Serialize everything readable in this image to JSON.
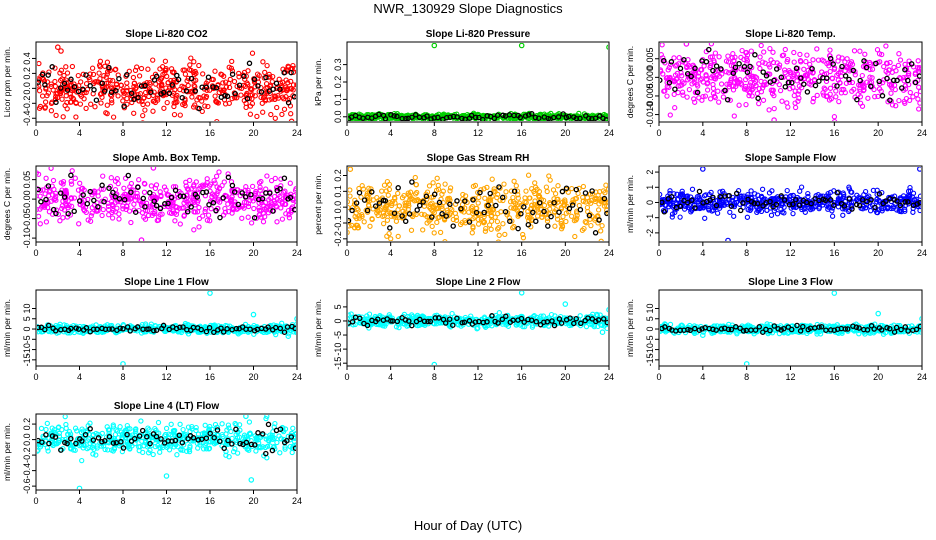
{
  "figure": {
    "title": "NWR_130929  Slope Diagnostics",
    "xlabel": "Hour of Day (UTC)",
    "overlay_color": "#000000"
  },
  "chart_data": [
    {
      "type": "scatter",
      "title": "Slope Li-820 CO2",
      "ylabel": "Licor ppm per min.",
      "color": "#ff0000",
      "xlim": [
        0,
        24
      ],
      "ylim": [
        -0.45,
        0.62
      ],
      "xticks": [
        0,
        4,
        8,
        12,
        16,
        20,
        24
      ],
      "yticks": [
        -0.4,
        -0.2,
        0.0,
        0.2,
        0.4
      ],
      "ytick_labels": [
        "-0.4",
        "-0.2",
        "0.0",
        "0.2",
        "0.4"
      ],
      "spread": 0.17,
      "overlay_spread": 0.12,
      "outliers": [
        [
          2.0,
          0.55
        ],
        [
          2.3,
          0.5
        ],
        [
          23.5,
          -0.44
        ]
      ]
    },
    {
      "type": "scatter",
      "title": "Slope Li-820 Pressure",
      "ylabel": "kPa per min.",
      "color": "#00d000",
      "xlim": [
        0,
        24
      ],
      "ylim": [
        -0.03,
        0.43
      ],
      "xticks": [
        0,
        4,
        8,
        12,
        16,
        20,
        24
      ],
      "yticks": [
        0.0,
        0.1,
        0.2,
        0.3
      ],
      "ytick_labels": [
        "0.0",
        "0.1",
        "0.2",
        "0.3"
      ],
      "spread": 0.008,
      "overlay_spread": 0.008,
      "outliers": [
        [
          8.0,
          0.41
        ],
        [
          16.0,
          0.41
        ],
        [
          24.0,
          0.4
        ]
      ]
    },
    {
      "type": "scatter",
      "title": "Slope Li-820 Temp.",
      "ylabel": "degrees C per min.",
      "color": "#ff00ff",
      "xlim": [
        0,
        24
      ],
      "ylim": [
        -0.012,
        0.0095
      ],
      "xticks": [
        0,
        4,
        8,
        12,
        16,
        20,
        24
      ],
      "yticks": [
        -0.01,
        -0.005,
        0.0,
        0.005
      ],
      "ytick_labels": [
        "-0.010",
        "-0.005",
        "0.000",
        "0.005"
      ],
      "spread": 0.004,
      "overlay_spread": 0.003,
      "outliers": [
        [
          2.5,
          0.009
        ],
        [
          10.5,
          -0.0115
        ]
      ]
    },
    {
      "type": "scatter",
      "title": "Slope Amb. Box Temp.",
      "ylabel": "degrees C per min.",
      "color": "#ff00ff",
      "xlim": [
        0,
        24
      ],
      "ylim": [
        -0.11,
        0.085
      ],
      "xticks": [
        0,
        4,
        8,
        12,
        16,
        20,
        24
      ],
      "yticks": [
        -0.1,
        -0.05,
        0.0,
        0.05
      ],
      "ytick_labels": [
        "-0.10",
        "-0.05",
        "0.00",
        "0.05"
      ],
      "spread": 0.03,
      "overlay_spread": 0.025,
      "outliers": [
        [
          9.7,
          -0.105
        ],
        [
          10.8,
          0.08
        ]
      ]
    },
    {
      "type": "scatter",
      "title": "Slope Gas Stream RH",
      "ylabel": "percent per min.",
      "color": "#ffa500",
      "xlim": [
        0,
        24
      ],
      "ylim": [
        -0.22,
        0.26
      ],
      "xticks": [
        0,
        4,
        8,
        12,
        16,
        20,
        24
      ],
      "yticks": [
        -0.2,
        -0.1,
        0.0,
        0.1,
        0.2
      ],
      "ytick_labels": [
        "-0.2",
        "-0.1",
        "0.0",
        "0.1",
        "0.2"
      ],
      "spread": 0.08,
      "overlay_spread": 0.07,
      "outliers": [
        [
          0.3,
          0.24
        ]
      ]
    },
    {
      "type": "scatter",
      "title": "Slope Sample Flow",
      "ylabel": "ml/min per min.",
      "color": "#0000ff",
      "xlim": [
        0,
        24
      ],
      "ylim": [
        -2.6,
        2.4
      ],
      "xticks": [
        0,
        4,
        8,
        12,
        16,
        20,
        24
      ],
      "yticks": [
        -2,
        -1,
        0,
        1,
        2
      ],
      "ytick_labels": [
        "-2",
        "-1",
        "0",
        "1",
        "2"
      ],
      "spread": 0.35,
      "overlay_spread": 0.3,
      "outliers": [
        [
          4.0,
          2.2
        ],
        [
          6.3,
          -2.5
        ],
        [
          23.8,
          2.2
        ]
      ]
    },
    {
      "type": "scatter",
      "title": "Slope Line 1 Flow",
      "ylabel": "ml/min per min.",
      "color": "#00ffff",
      "xlim": [
        0,
        24
      ],
      "ylim": [
        -18,
        19
      ],
      "xticks": [
        0,
        4,
        8,
        12,
        16,
        20,
        24
      ],
      "yticks": [
        -15,
        -10,
        -5,
        0,
        5,
        10
      ],
      "ytick_labels": [
        "-15",
        "-10",
        "-5",
        "0",
        "5",
        "10"
      ],
      "spread": 1.0,
      "overlay_spread": 0.6,
      "outliers": [
        [
          8.0,
          -17.0
        ],
        [
          16.0,
          17.5
        ],
        [
          20.0,
          7.0
        ],
        [
          24.0,
          5.0
        ],
        [
          23.2,
          -3.5
        ]
      ]
    },
    {
      "type": "scatter",
      "title": "Slope Line 2 Flow",
      "ylabel": "ml/min per min.",
      "color": "#00ffff",
      "xlim": [
        0,
        24
      ],
      "ylim": [
        -16,
        11
      ],
      "xticks": [
        0,
        4,
        8,
        12,
        16,
        20,
        24
      ],
      "yticks": [
        -15,
        -10,
        -5,
        0,
        5
      ],
      "ytick_labels": [
        "-15",
        "-10",
        "-5",
        "0",
        "5"
      ],
      "spread": 1.0,
      "overlay_spread": 0.8,
      "outliers": [
        [
          8.0,
          -15.5
        ],
        [
          16.0,
          10.0
        ],
        [
          20.0,
          6.0
        ],
        [
          24.0,
          4.0
        ],
        [
          23.4,
          -4.0
        ]
      ]
    },
    {
      "type": "scatter",
      "title": "Slope Line 3 Flow",
      "ylabel": "ml/min per min.",
      "color": "#00ffff",
      "xlim": [
        0,
        24
      ],
      "ylim": [
        -18,
        19
      ],
      "xticks": [
        0,
        4,
        8,
        12,
        16,
        20,
        24
      ],
      "yticks": [
        -15,
        -10,
        -5,
        0,
        5,
        10
      ],
      "ytick_labels": [
        "-15",
        "-10",
        "-5",
        "0",
        "5",
        "10"
      ],
      "spread": 1.0,
      "overlay_spread": 0.8,
      "outliers": [
        [
          8.0,
          -17.0
        ],
        [
          16.0,
          17.5
        ],
        [
          20.0,
          7.5
        ],
        [
          24.0,
          5.0
        ],
        [
          4.0,
          -3.0
        ]
      ]
    },
    {
      "type": "scatter",
      "title": "Slope Line 4 (LT) Flow",
      "ylabel": "ml/min per min.",
      "color": "#00ffff",
      "xlim": [
        0,
        24
      ],
      "ylim": [
        -0.65,
        0.33
      ],
      "xticks": [
        0,
        4,
        8,
        12,
        16,
        20,
        24
      ],
      "yticks": [
        -0.6,
        -0.4,
        -0.2,
        0.0,
        0.2
      ],
      "ytick_labels": [
        "-0.6",
        "-0.4",
        "-0.2",
        "0.0",
        "0.2"
      ],
      "spread": 0.1,
      "overlay_spread": 0.08,
      "outliers": [
        [
          4.0,
          -0.63
        ],
        [
          12.0,
          -0.47
        ],
        [
          19.3,
          0.3
        ],
        [
          19.8,
          -0.52
        ]
      ]
    }
  ]
}
